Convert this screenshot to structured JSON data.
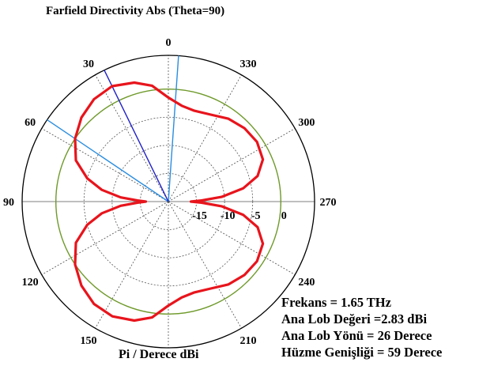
{
  "chart_data": {
    "type": "polar",
    "title": "Farfield Directivity Abs (Theta=90)",
    "angular_unit_label": "Pi / Derece dBi",
    "angle_tick_labels": [
      "0",
      "30",
      "60",
      "90",
      "120",
      "150",
      "210",
      "240",
      "270",
      "300",
      "330"
    ],
    "angle_ticks": [
      0,
      30,
      60,
      90,
      120,
      150,
      210,
      240,
      270,
      300,
      330
    ],
    "radial_tick_labels": [
      "-15",
      "-10",
      "-5",
      "0"
    ],
    "radial_ticks": [
      -15,
      -10,
      -5,
      0
    ],
    "radial_range_dbi": [
      -20,
      6
    ],
    "angle_direction": "counterclockwise",
    "zero_direction": "top",
    "series": [
      {
        "color": "#e8141c",
        "phi": [
          0,
          8,
          16,
          26,
          36,
          46,
          56,
          66,
          74,
          80,
          85,
          88,
          90,
          92,
          95,
          100,
          106,
          114,
          124,
          134,
          144,
          154,
          164,
          172,
          180,
          188,
          196,
          206,
          216,
          226,
          236,
          246,
          254,
          260,
          265,
          268,
          270,
          272,
          275,
          280,
          286,
          294,
          304,
          314,
          324,
          334,
          344,
          352,
          360
        ],
        "directivity_dbi": [
          -1.5,
          0.8,
          2.0,
          2.83,
          2.5,
          1.5,
          0.0,
          -2.0,
          -5.0,
          -8.0,
          -11.5,
          -14.5,
          -16.0,
          -14.5,
          -11.5,
          -8.0,
          -5.0,
          -2.0,
          0.0,
          1.5,
          2.5,
          2.7,
          2.0,
          0.8,
          -1.5,
          -2.8,
          -3.2,
          -2.8,
          -1.8,
          -1.2,
          -1.0,
          -1.6,
          -3.5,
          -6.5,
          -10.5,
          -14.0,
          -16.0,
          -14.0,
          -10.5,
          -6.5,
          -3.5,
          -1.6,
          -1.0,
          -1.2,
          -1.8,
          -2.8,
          -3.2,
          -2.8,
          -1.5
        ]
      }
    ],
    "markers": [
      {
        "color": "#2a8de0",
        "phi": 356
      },
      {
        "color": "#2a8de0",
        "phi": 56
      },
      {
        "color": "#2020c8",
        "phi": 26
      }
    ],
    "reference_circle": {
      "color": "#6f9a2a",
      "value_dbi": 0
    }
  },
  "info": {
    "lines": [
      "Frekans = 1.65 THz",
      "Ana Lob Değeri  =2.83 dBi",
      "Ana Lob Yönü = 26 Derece",
      "Hüzme Genişliği = 59 Derece"
    ]
  }
}
